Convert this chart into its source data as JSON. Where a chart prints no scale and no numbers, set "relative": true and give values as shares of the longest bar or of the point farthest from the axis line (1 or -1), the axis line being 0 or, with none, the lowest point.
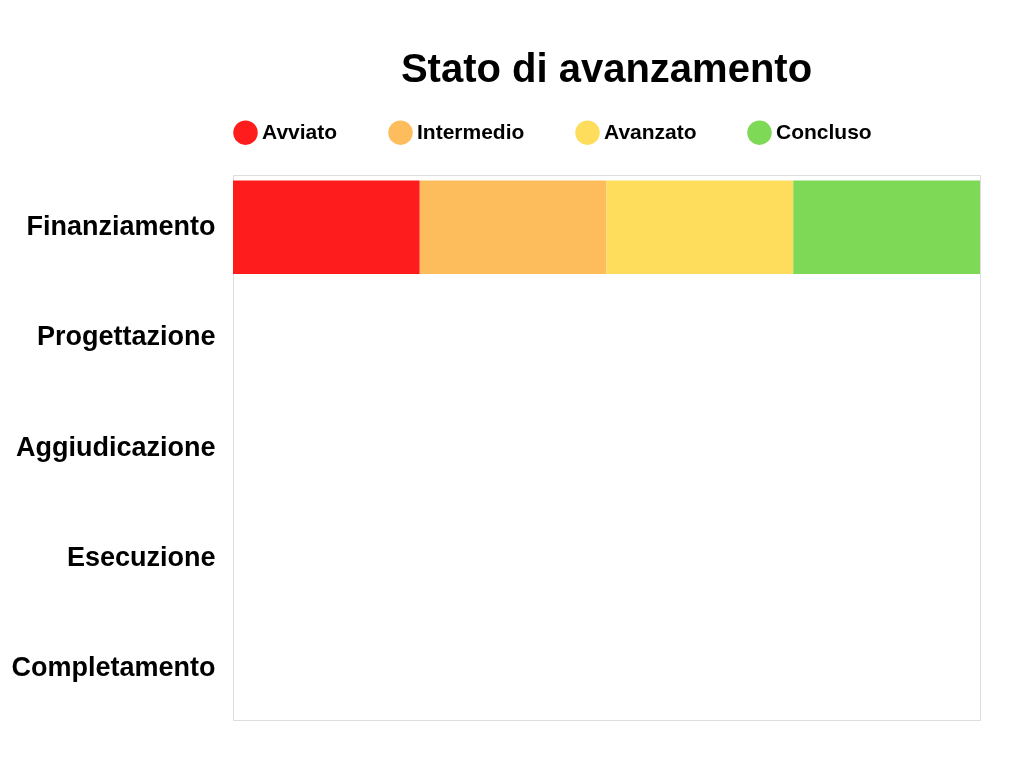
{
  "chart_data": {
    "type": "bar",
    "title": "Stato di avanzamento",
    "orientation": "horizontal",
    "stacked": true,
    "relative": true,
    "legend": "top",
    "categories": [
      "Finanziamento",
      "Progettazione",
      "Aggiudicazione",
      "Esecuzione",
      "Completamento"
    ],
    "series": [
      {
        "name": "Avviato",
        "color": "#ff1c1c",
        "values": [
          0.25,
          null,
          null,
          null,
          null
        ]
      },
      {
        "name": "Intermedio",
        "color": "#fdbd5d",
        "values": [
          0.25,
          null,
          null,
          null,
          null
        ]
      },
      {
        "name": "Avanzato",
        "color": "#fedd5c",
        "values": [
          0.25,
          null,
          null,
          null,
          null
        ]
      },
      {
        "name": "Concluso",
        "color": "#7ed957",
        "values": [
          0.25,
          null,
          null,
          null,
          null
        ]
      }
    ]
  }
}
